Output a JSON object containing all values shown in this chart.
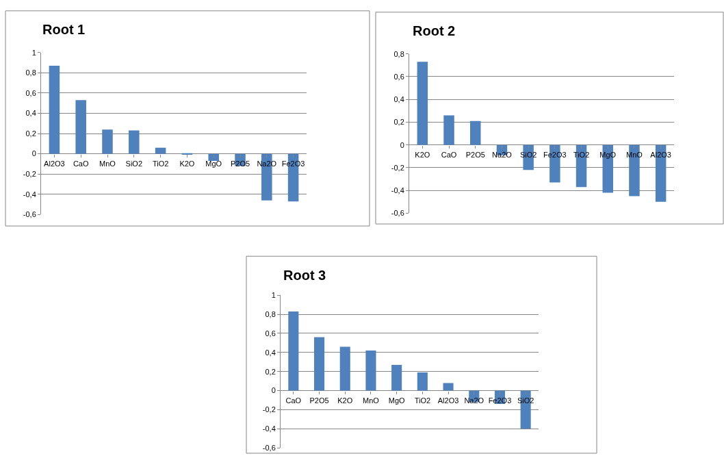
{
  "chart_data": [
    {
      "type": "bar",
      "title": "Root 1",
      "categories": [
        "Al2O3",
        "CaO",
        "MnO",
        "SiO2",
        "TiO2",
        "K2O",
        "MgO",
        "P2O5",
        "Na2O",
        "Fe2O3"
      ],
      "values": [
        0.87,
        0.53,
        0.24,
        0.23,
        0.06,
        -0.01,
        -0.07,
        -0.12,
        -0.46,
        -0.47
      ],
      "color": "#4f81bd",
      "ylim": [
        -0.6,
        1
      ],
      "yticks": [
        {
          "value": -0.6,
          "label": "-0,6"
        },
        {
          "value": -0.4,
          "label": "-0,4"
        },
        {
          "value": -0.2,
          "label": "-0,2"
        },
        0,
        {
          "value": 0.2,
          "label": "0,2"
        },
        {
          "value": 0.4,
          "label": "0,4"
        },
        {
          "value": 0.6,
          "label": "0,6"
        },
        {
          "value": 0.8,
          "label": "0,8"
        },
        1
      ],
      "grid": "y"
    },
    {
      "type": "bar",
      "title": "Root 2",
      "categories": [
        "K2O",
        "CaO",
        "P2O5",
        "Na2O",
        "SiO2",
        "Fe2O3",
        "TiO2",
        "MgO",
        "MnO",
        "Al2O3"
      ],
      "values": [
        0.73,
        0.26,
        0.21,
        -0.09,
        -0.22,
        -0.33,
        -0.37,
        -0.42,
        -0.45,
        -0.5
      ],
      "color": "#4f81bd",
      "ylim": [
        -0.6,
        0.8
      ],
      "yticks": [
        {
          "value": -0.6,
          "label": "-0,6"
        },
        {
          "value": -0.4,
          "label": "-0,4"
        },
        {
          "value": -0.2,
          "label": "-0,2"
        },
        0,
        {
          "value": 0.2,
          "label": "0,2"
        },
        {
          "value": 0.4,
          "label": "0,4"
        },
        {
          "value": 0.6,
          "label": "0,6"
        },
        {
          "value": 0.8,
          "label": "0,8"
        }
      ],
      "grid": "y"
    },
    {
      "type": "bar",
      "title": "Root 3",
      "categories": [
        "CaO",
        "P2O5",
        "K2O",
        "MnO",
        "MgO",
        "TiO2",
        "Al2O3",
        "Na2O",
        "Fe2O3",
        "SiO2"
      ],
      "values": [
        0.83,
        0.56,
        0.46,
        0.42,
        0.27,
        0.19,
        0.08,
        -0.12,
        -0.14,
        -0.4
      ],
      "color": "#4f81bd",
      "ylim": [
        -0.6,
        1
      ],
      "yticks": [
        {
          "value": -0.6,
          "label": "-0,6"
        },
        {
          "value": -0.4,
          "label": "-0,4"
        },
        {
          "value": -0.2,
          "label": "-0,2"
        },
        0,
        {
          "value": 0.2,
          "label": "0,2"
        },
        {
          "value": 0.4,
          "label": "0,4"
        },
        {
          "value": 0.6,
          "label": "0,6"
        },
        {
          "value": 0.8,
          "label": "0,8"
        },
        1
      ],
      "grid": "y"
    }
  ]
}
